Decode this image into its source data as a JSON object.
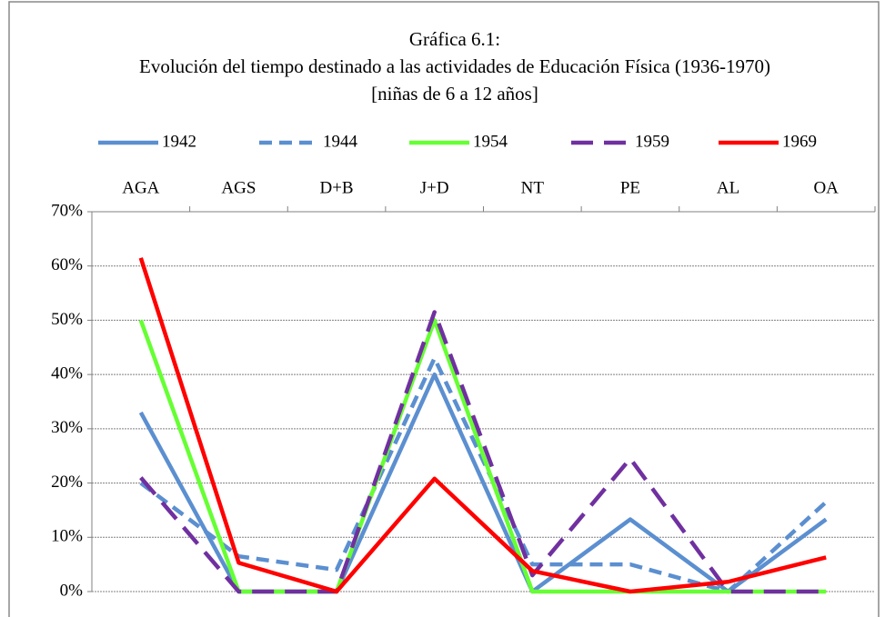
{
  "chart_data": {
    "type": "line",
    "title": [
      "Gráfica 6.1:",
      "Evolución del tiempo destinado a las actividades de Educación Física (1936-1970)",
      "[niñas de 6 a 12 años]"
    ],
    "categories": [
      "AGA",
      "AGS",
      "D+B",
      "J+D",
      "NT",
      "PE",
      "AL",
      "OA"
    ],
    "series": [
      {
        "name": "1942",
        "color": "#5b8fd0",
        "style": "solid",
        "values": [
          33,
          0,
          0,
          40,
          0,
          13.3,
          0,
          13.3
        ]
      },
      {
        "name": "1944",
        "color": "#5b8fd0",
        "style": "dashed",
        "values": [
          20,
          6.5,
          4,
          43,
          5,
          5,
          0,
          16.5
        ]
      },
      {
        "name": "1954",
        "color": "#66ff33",
        "style": "solid",
        "values": [
          50,
          0,
          0,
          50,
          0,
          0,
          0,
          0
        ]
      },
      {
        "name": "1959",
        "color": "#7030a0",
        "style": "long-dashed",
        "values": [
          21,
          0,
          0,
          51.5,
          3,
          24.5,
          0,
          0
        ]
      },
      {
        "name": "1969",
        "color": "#ff0000",
        "style": "solid",
        "values": [
          61.5,
          5.3,
          0,
          20.8,
          3.8,
          0,
          1.8,
          6.3
        ]
      }
    ],
    "ylim": [
      0,
      70
    ],
    "yticks": [
      {
        "value": 0,
        "label": "0%"
      },
      {
        "value": 10,
        "label": "10%"
      },
      {
        "value": 20,
        "label": "20%"
      },
      {
        "value": 30,
        "label": "30%"
      },
      {
        "value": 40,
        "label": "40%"
      },
      {
        "value": 50,
        "label": "50%"
      },
      {
        "value": 60,
        "label": "60%"
      },
      {
        "value": 70,
        "label": "70%"
      }
    ],
    "grid": true,
    "legend": "top",
    "category_axis": "top"
  }
}
